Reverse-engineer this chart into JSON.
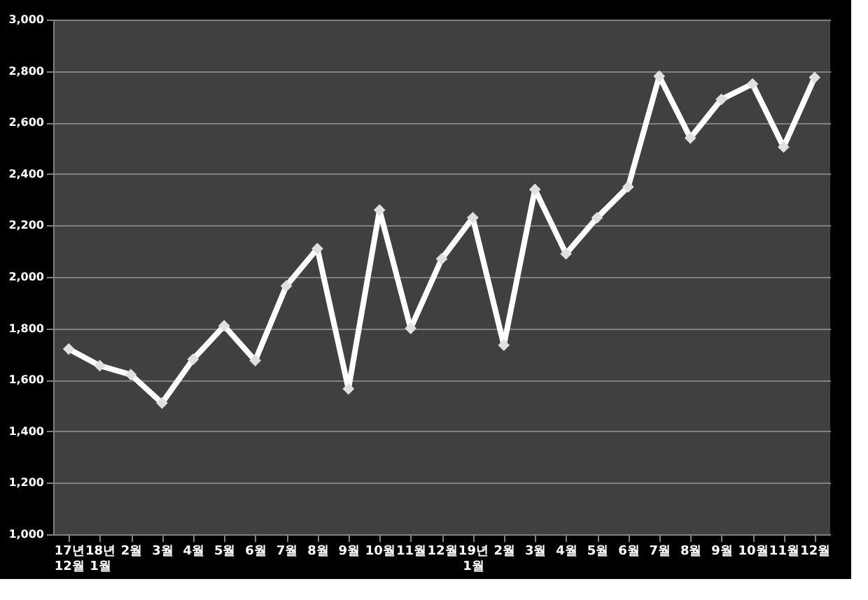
{
  "chart_data": {
    "type": "line",
    "categories": [
      "17년\n12월",
      "18년\n1월",
      "2월",
      "3월",
      "4월",
      "5월",
      "6월",
      "7월",
      "8월",
      "9월",
      "10월",
      "11월",
      "12월",
      "19년\n1월",
      "2월",
      "3월",
      "4월",
      "5월",
      "6월",
      "7월",
      "8월",
      "9월",
      "10월",
      "11월",
      "12월"
    ],
    "series": [
      {
        "color": "#ffffff",
        "values": [
          1720,
          1655,
          1620,
          1510,
          1680,
          1810,
          1675,
          1965,
          2110,
          1565,
          2260,
          1800,
          2070,
          2230,
          1735,
          2340,
          2090,
          2230,
          2350,
          2780,
          2540,
          2690,
          2750,
          2505,
          2775
        ]
      }
    ],
    "ylim": [
      1000,
      3000
    ],
    "yticks": [
      {
        "value": 1000,
        "label": "1,000"
      },
      {
        "value": 1200,
        "label": "1,200"
      },
      {
        "value": 1400,
        "label": "1,400"
      },
      {
        "value": 1600,
        "label": "1,600"
      },
      {
        "value": 1800,
        "label": "1,800"
      },
      {
        "value": 2000,
        "label": "2,000"
      },
      {
        "value": 2200,
        "label": "2,200"
      },
      {
        "value": 2400,
        "label": "2,400"
      },
      {
        "value": 2600,
        "label": "2,600"
      },
      {
        "value": 2800,
        "label": "2,800"
      },
      {
        "value": 3000,
        "label": "3,000"
      }
    ],
    "grid": "y",
    "marker": "diamond",
    "line_style": "solid"
  }
}
